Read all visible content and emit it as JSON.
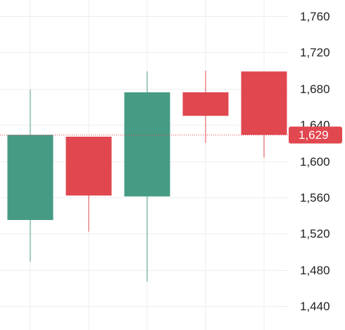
{
  "chart_data": {
    "type": "candlestick",
    "title": "",
    "xlabel": "",
    "ylabel": "",
    "ylim": [
      1425,
      1775
    ],
    "grid": true,
    "y_ticks": [
      1440,
      1480,
      1520,
      1560,
      1600,
      1640,
      1680,
      1720,
      1760
    ],
    "y_tick_labels": [
      "1,440",
      "1,480",
      "1,520",
      "1,560",
      "1,600",
      "1,640",
      "1,680",
      "1,720",
      "1,760"
    ],
    "candles": [
      {
        "open": 1535,
        "high": 1679,
        "low": 1489,
        "close": 1629,
        "direction": "up"
      },
      {
        "open": 1627,
        "high": 1627,
        "low": 1522,
        "close": 1562,
        "direction": "down"
      },
      {
        "open": 1561,
        "high": 1699,
        "low": 1467,
        "close": 1676,
        "direction": "up"
      },
      {
        "open": 1676,
        "high": 1700,
        "low": 1620,
        "close": 1650,
        "direction": "down"
      },
      {
        "open": 1699,
        "high": 1699,
        "low": 1604,
        "close": 1629,
        "direction": "down"
      }
    ],
    "last_price": 1629,
    "last_price_label": "1,629",
    "colors": {
      "up": "#459b84",
      "down": "#e0474f",
      "grid": "#eeeeee",
      "axis_text": "#222222",
      "badge_text": "#ffffff"
    }
  }
}
